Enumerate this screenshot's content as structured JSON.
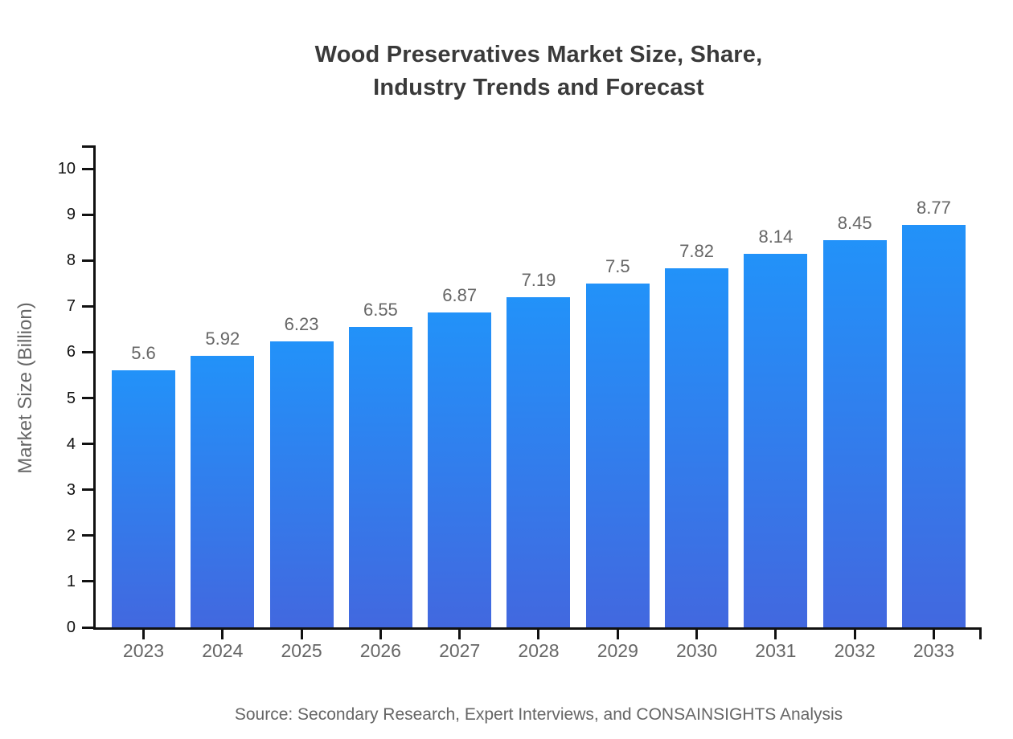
{
  "page": {
    "background": "#ffffff"
  },
  "header": {
    "title_line1": "Wood Preservatives Market Size, Share,",
    "title_line2": "Industry Trends and Forecast"
  },
  "footer": {
    "source": "Source: Secondary Research, Expert Interviews, and CONSAINSIGHTS Analysis"
  },
  "chart_data": {
    "type": "bar",
    "title": "Wood Preservatives Market Size, Share, Industry Trends and Forecast",
    "categories": [
      "2023",
      "2024",
      "2025",
      "2026",
      "2027",
      "2028",
      "2029",
      "2030",
      "2031",
      "2032",
      "2033"
    ],
    "values": [
      5.6,
      5.92,
      6.23,
      6.55,
      6.87,
      7.19,
      7.5,
      7.82,
      8.14,
      8.45,
      8.77
    ],
    "xlabel": "",
    "ylabel": "Market Size (Billion)",
    "ylim": [
      0,
      10
    ],
    "yticks": [
      0,
      1,
      2,
      3,
      4,
      5,
      6,
      7,
      8,
      9,
      10
    ],
    "grid": false,
    "legend_position": "none",
    "value_labels_visible": true,
    "colors": {
      "background": "#ffffff",
      "bar_gradient_top": "#2292f9",
      "bar_gradient_bottom": "#4268df",
      "axis": "#111111",
      "y_tick_label": "#111111",
      "category_label": "#666666",
      "value_label": "#666666",
      "title": "#3a3a3a",
      "source": "#666666"
    }
  }
}
